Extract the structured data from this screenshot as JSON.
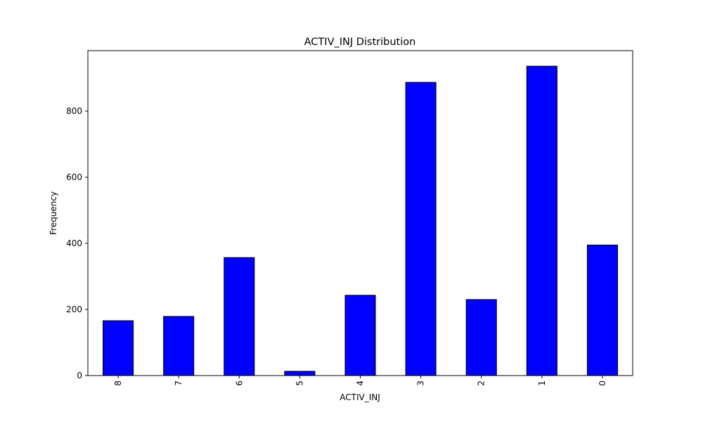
{
  "chart_data": {
    "type": "bar",
    "title": "ACTIV_INJ Distribution",
    "xlabel": "ACTIV_INJ",
    "ylabel": "Frequency",
    "categories": [
      "8",
      "7",
      "6",
      "5",
      "4",
      "3",
      "2",
      "1",
      "0"
    ],
    "values": [
      166,
      179,
      357,
      13,
      243,
      887,
      230,
      936,
      395
    ],
    "ylim": [
      0,
      983
    ],
    "yticks": [
      0,
      200,
      400,
      600,
      800
    ],
    "bar_color": "#0000ff",
    "edge_color": "#000000",
    "grid": false,
    "legend": "none"
  }
}
